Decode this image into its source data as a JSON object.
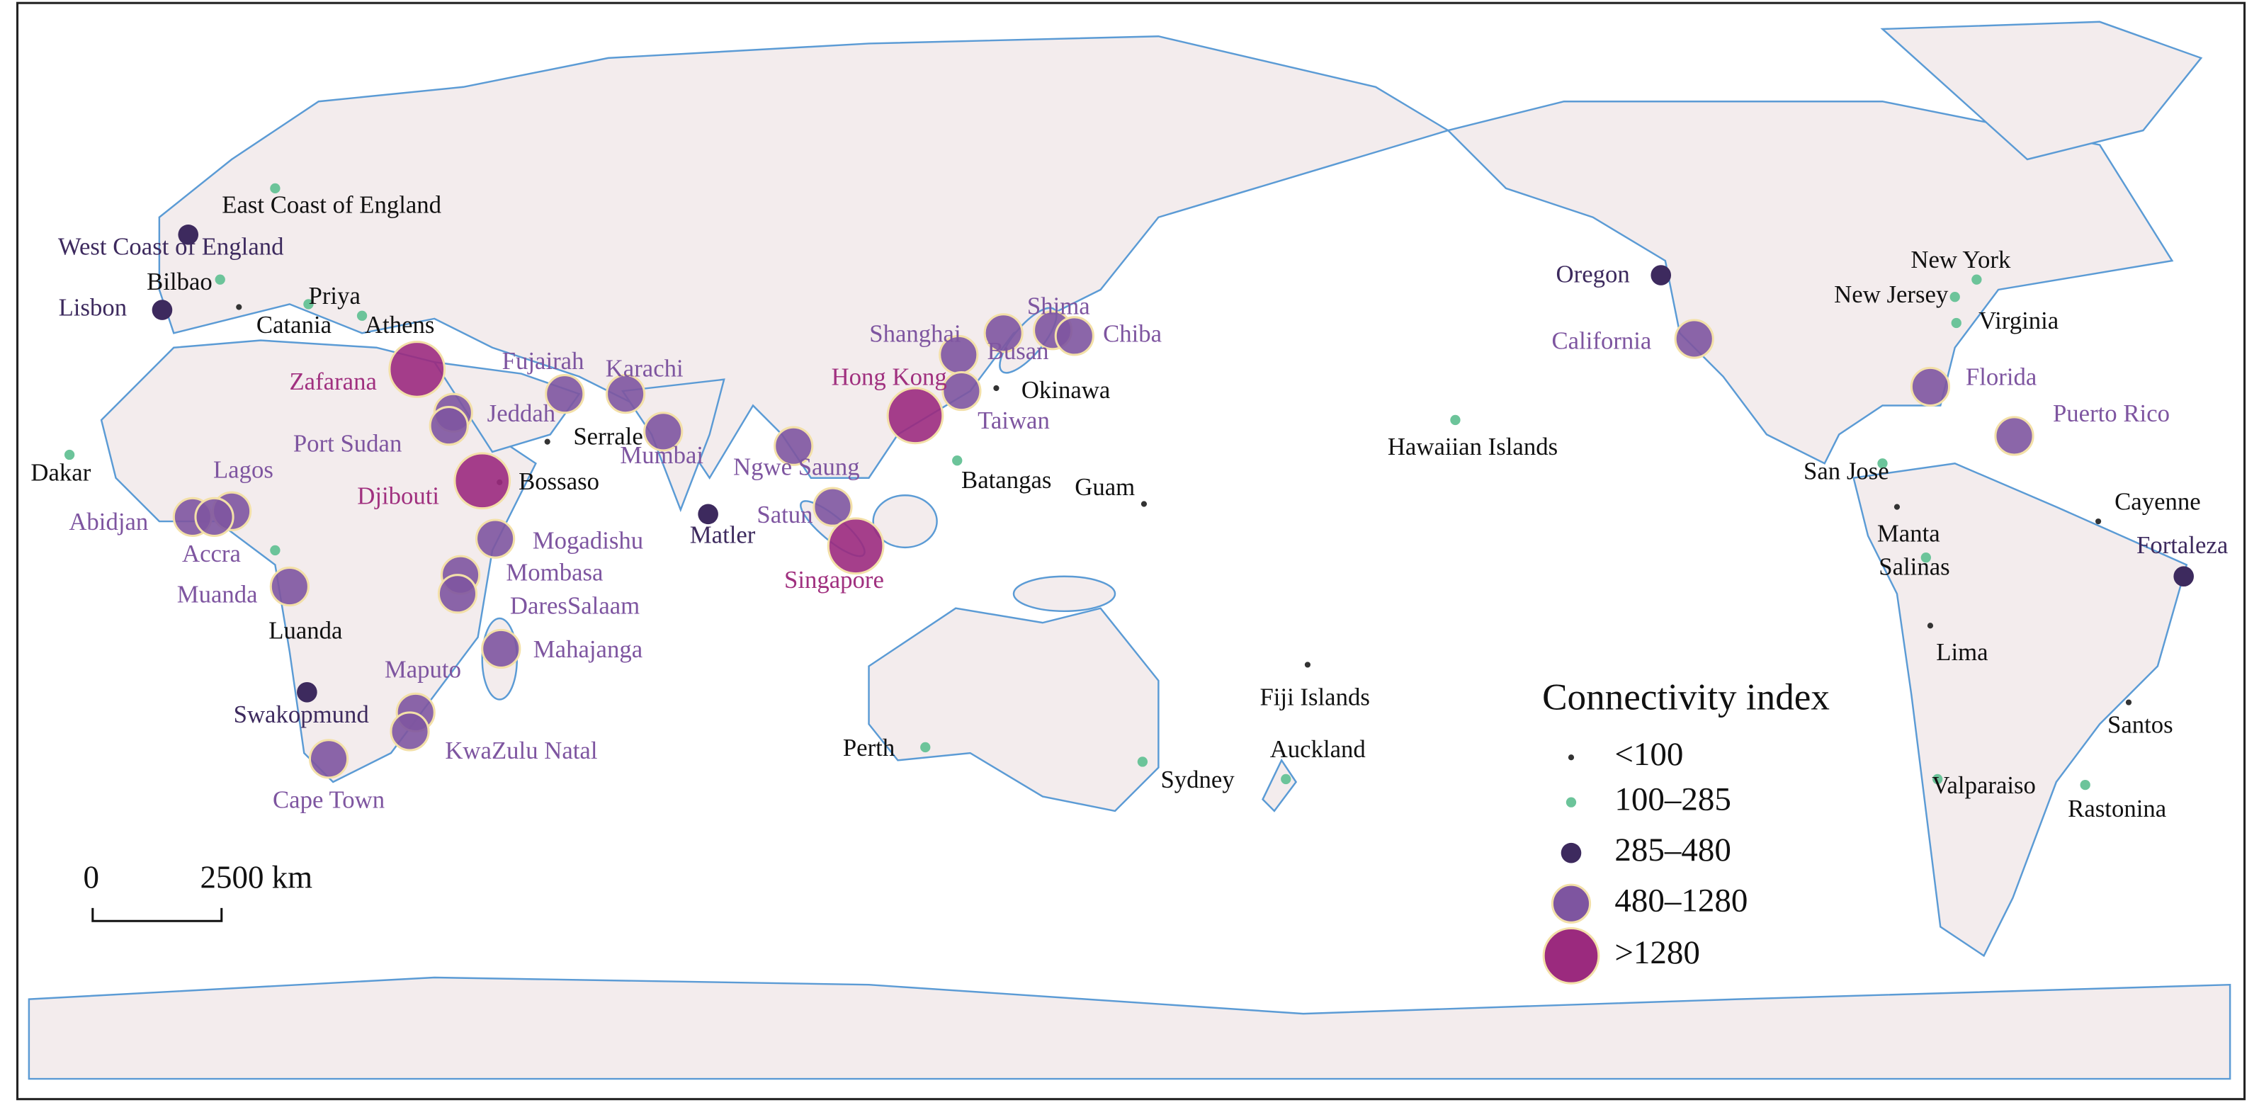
{
  "legend": {
    "title": "Connectivity index",
    "entries": [
      {
        "label": "<100",
        "ports": [
          "Catania",
          "Serrale",
          "Bossaso",
          "Okinawa",
          "Guam",
          "Fiji Islands",
          "Cayenne",
          "Lima",
          "Santos",
          "Manta"
        ]
      },
      {
        "label": "100–285",
        "ports": [
          "East Coast of England",
          "Bilbao",
          "Priya",
          "Athens",
          "Dakar",
          "Luanda",
          "Batangas",
          "Hawaiian Islands",
          "Auckland",
          "Perth",
          "Sydney",
          "New York",
          "New Jersey",
          "Virginia",
          "San Jose",
          "Salinas",
          "Valparaiso",
          "Rastonina"
        ]
      },
      {
        "label": "285–480",
        "ports": [
          "West Coast of England",
          "Lisbon",
          "Oregon",
          "Swakopmund",
          "Matler",
          "Fortaleza"
        ]
      },
      {
        "label": "480–1280",
        "ports": [
          "Fujairah",
          "Karachi",
          "Jeddah",
          "Port Sudan",
          "Lagos",
          "Abidjan",
          "Accra",
          "Muanda",
          "Mogadishu",
          "Mombasa",
          "DaresSalaam",
          "Mahajanga",
          "Maputo",
          "KwaZulu Natal",
          "Cape Town",
          "Mumbai",
          "Ngwe Saung",
          "Satun",
          "Shanghai",
          "Busan",
          "Shima",
          "Chiba",
          "Taiwan",
          "California",
          "Florida",
          "Puerto Rico"
        ]
      },
      {
        "label": ">1280",
        "ports": [
          "Zafarana",
          "Djibouti",
          "Hong Kong",
          "Singapore"
        ]
      }
    ]
  },
  "scale_bar": {
    "start": "0",
    "distance": "2500 km"
  }
}
